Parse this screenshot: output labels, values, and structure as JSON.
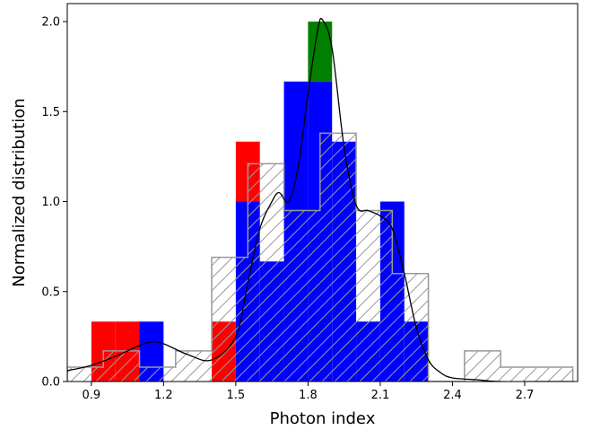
{
  "chart_data": {
    "type": "bar",
    "xlabel": "Photon index",
    "ylabel": "Normalized distribution",
    "xlim": [
      0.8,
      2.92
    ],
    "ylim": [
      0,
      2.1
    ],
    "xticks": [
      0.9,
      1.2,
      1.5,
      1.8,
      2.1,
      2.4,
      2.7
    ],
    "yticks": [
      0.0,
      0.5,
      1.0,
      1.5,
      2.0
    ],
    "xtick_labels": [
      "0.9",
      "1.2",
      "1.5",
      "1.8",
      "2.1",
      "2.4",
      "2.7"
    ],
    "ytick_labels": [
      "0.0",
      "0.5",
      "1.0",
      "1.5",
      "2.0"
    ],
    "bin_width": 0.1,
    "filled_histogram": {
      "bins": [
        {
          "x0": 0.9,
          "x1": 1.0,
          "blue": 0.0,
          "red": 0.333,
          "green": 0.0
        },
        {
          "x0": 1.0,
          "x1": 1.1,
          "blue": 0.0,
          "red": 0.333,
          "green": 0.0
        },
        {
          "x0": 1.1,
          "x1": 1.2,
          "blue": 0.333,
          "red": 0.0,
          "green": 0.0
        },
        {
          "x0": 1.4,
          "x1": 1.5,
          "blue": 0.0,
          "red": 0.333,
          "green": 0.0
        },
        {
          "x0": 1.5,
          "x1": 1.6,
          "blue": 1.0,
          "red": 0.333,
          "green": 0.0
        },
        {
          "x0": 1.6,
          "x1": 1.7,
          "blue": 0.667,
          "red": 0.0,
          "green": 0.0
        },
        {
          "x0": 1.7,
          "x1": 1.8,
          "blue": 1.667,
          "red": 0.0,
          "green": 0.0
        },
        {
          "x0": 1.8,
          "x1": 1.9,
          "blue": 1.667,
          "red": 0.0,
          "green": 0.333
        },
        {
          "x0": 1.9,
          "x1": 2.0,
          "blue": 1.333,
          "red": 0.0,
          "green": 0.0
        },
        {
          "x0": 2.0,
          "x1": 2.1,
          "blue": 0.333,
          "red": 0.0,
          "green": 0.0
        },
        {
          "x0": 2.1,
          "x1": 2.2,
          "blue": 1.0,
          "red": 0.0,
          "green": 0.0
        },
        {
          "x0": 2.2,
          "x1": 2.3,
          "blue": 0.333,
          "red": 0.0,
          "green": 0.0
        }
      ]
    },
    "hatched_histogram": {
      "edges": [
        0.8,
        0.95,
        1.1,
        1.25,
        1.4,
        1.55,
        1.7,
        1.85,
        2.0,
        2.15,
        2.3,
        2.45,
        2.6,
        2.75,
        2.9
      ],
      "values": [
        0.08,
        0.17,
        0.08,
        0.17,
        0.69,
        1.21,
        0.95,
        1.38,
        0.95,
        0.6,
        0.0,
        0.17,
        0.08,
        0.08
      ]
    },
    "kde_curve": {
      "x": [
        0.8,
        0.9,
        1.0,
        1.1,
        1.15,
        1.2,
        1.3,
        1.4,
        1.5,
        1.55,
        1.6,
        1.65,
        1.68,
        1.72,
        1.76,
        1.8,
        1.84,
        1.86,
        1.9,
        1.95,
        2.0,
        2.05,
        2.1,
        2.15,
        2.2,
        2.25,
        2.3,
        2.35,
        2.4,
        2.5,
        2.6,
        2.8,
        2.9
      ],
      "y": [
        0.06,
        0.09,
        0.14,
        0.2,
        0.22,
        0.21,
        0.15,
        0.12,
        0.25,
        0.55,
        0.85,
        1.0,
        1.05,
        1.0,
        1.2,
        1.6,
        1.95,
        2.01,
        1.85,
        1.3,
        0.98,
        0.95,
        0.92,
        0.85,
        0.6,
        0.3,
        0.12,
        0.05,
        0.02,
        0.01,
        0.0,
        0.0,
        0.0
      ]
    },
    "colors": {
      "blue": "#0000ff",
      "red": "#ff0000",
      "green": "#007f00",
      "hatch": "#999999",
      "curve": "#000000"
    },
    "grid": false,
    "legend": "none"
  }
}
